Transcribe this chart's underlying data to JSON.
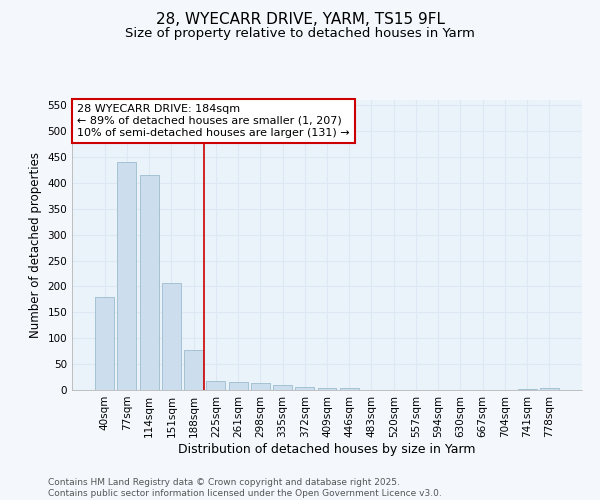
{
  "title": "28, WYECARR DRIVE, YARM, TS15 9FL",
  "subtitle": "Size of property relative to detached houses in Yarm",
  "xlabel": "Distribution of detached houses by size in Yarm",
  "ylabel": "Number of detached properties",
  "categories": [
    "40sqm",
    "77sqm",
    "114sqm",
    "151sqm",
    "188sqm",
    "225sqm",
    "261sqm",
    "298sqm",
    "335sqm",
    "372sqm",
    "409sqm",
    "446sqm",
    "483sqm",
    "520sqm",
    "557sqm",
    "594sqm",
    "630sqm",
    "667sqm",
    "704sqm",
    "741sqm",
    "778sqm"
  ],
  "values": [
    180,
    440,
    415,
    207,
    78,
    18,
    15,
    13,
    10,
    5,
    4,
    3,
    0,
    0,
    0,
    0,
    0,
    0,
    0,
    1,
    3
  ],
  "bar_color": "#ccdded",
  "bar_edge_color": "#9bbccc",
  "ref_line_index": 4,
  "ref_line_color": "#cc0000",
  "annotation_line1": "28 WYECARR DRIVE: 184sqm",
  "annotation_line2": "← 89% of detached houses are smaller (1, 207)",
  "annotation_line3": "10% of semi-detached houses are larger (131) →",
  "annotation_box_color": "#cc0000",
  "annotation_text_fontsize": 8,
  "ylim": [
    0,
    560
  ],
  "yticks": [
    0,
    50,
    100,
    150,
    200,
    250,
    300,
    350,
    400,
    450,
    500,
    550
  ],
  "title_fontsize": 11,
  "subtitle_fontsize": 9.5,
  "xlabel_fontsize": 9,
  "ylabel_fontsize": 8.5,
  "tick_fontsize": 7.5,
  "footer_text": "Contains HM Land Registry data © Crown copyright and database right 2025.\nContains public sector information licensed under the Open Government Licence v3.0.",
  "footer_fontsize": 6.5,
  "background_color": "#f4f8fc",
  "grid_color": "#dce8f4",
  "axes_bg_color": "#eaf2fa"
}
